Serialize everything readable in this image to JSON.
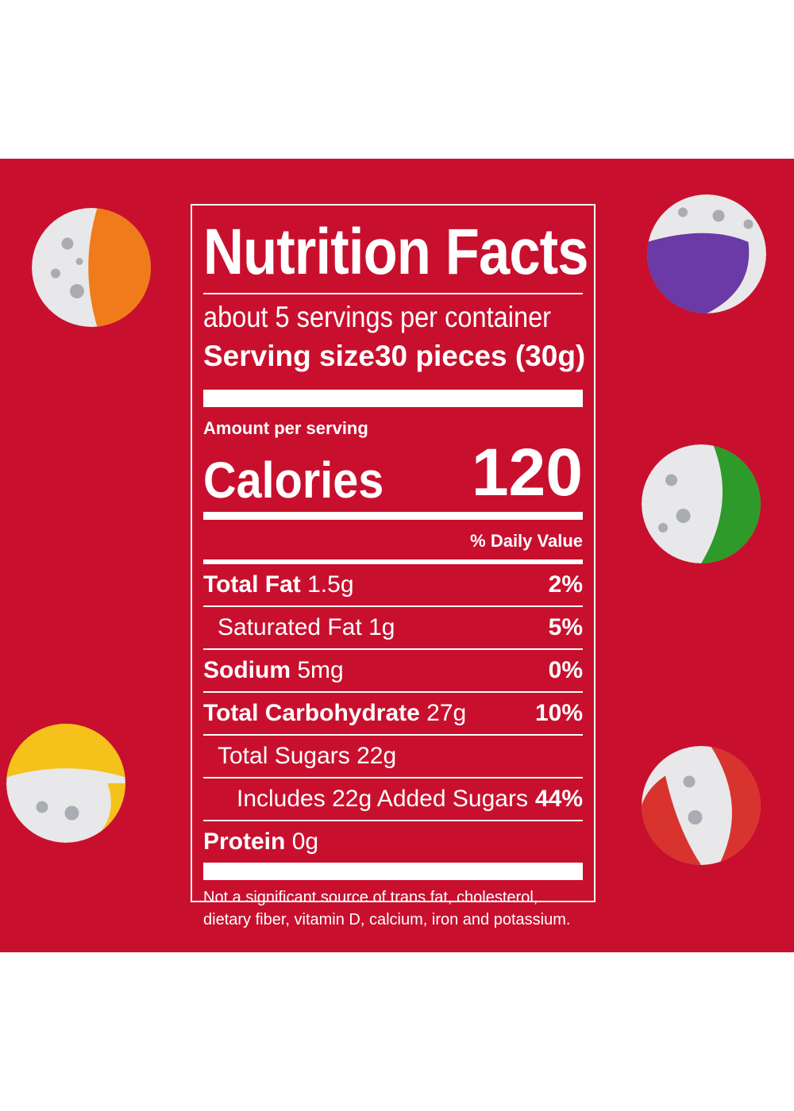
{
  "label": {
    "title": "Nutrition Facts",
    "servings_per_container": "about 5 servings per container",
    "serving_size_label": "Serving size",
    "serving_size_value": "30 pieces (30g)",
    "amount_per_serving": "Amount per serving",
    "calories_label": "Calories",
    "calories_value": "120",
    "daily_value_header": "% Daily Value",
    "rows": [
      {
        "name": "Total Fat",
        "amount": "1.5g",
        "dv": "2%"
      },
      {
        "name": "Saturated Fat 1g",
        "amount": "",
        "dv": "5%"
      },
      {
        "name": "Sodium",
        "amount": "5mg",
        "dv": "0%"
      },
      {
        "name": "Total Carbohydrate",
        "amount": "27g",
        "dv": "10%"
      },
      {
        "name": "Total Sugars 22g",
        "amount": "",
        "dv": ""
      },
      {
        "name": "Includes 22g Added Sugars",
        "amount": "",
        "dv": "44%"
      },
      {
        "name": "Protein",
        "amount": "0g",
        "dv": ""
      }
    ],
    "footnote": "Not a significant source of trans fat, cholesterol, dietary fiber, vitamin D, calcium, iron and potassium."
  },
  "colors": {
    "background": "#c8102e",
    "candy_orange": "#f07b1a",
    "candy_purple": "#6b3aa6",
    "candy_green": "#2e9a2a",
    "candy_yellow": "#f4c21a",
    "candy_red": "#d8332f"
  },
  "candies": [
    "orange-candy-icon",
    "purple-candy-icon",
    "green-candy-icon",
    "yellow-candy-icon",
    "red-candy-icon"
  ]
}
